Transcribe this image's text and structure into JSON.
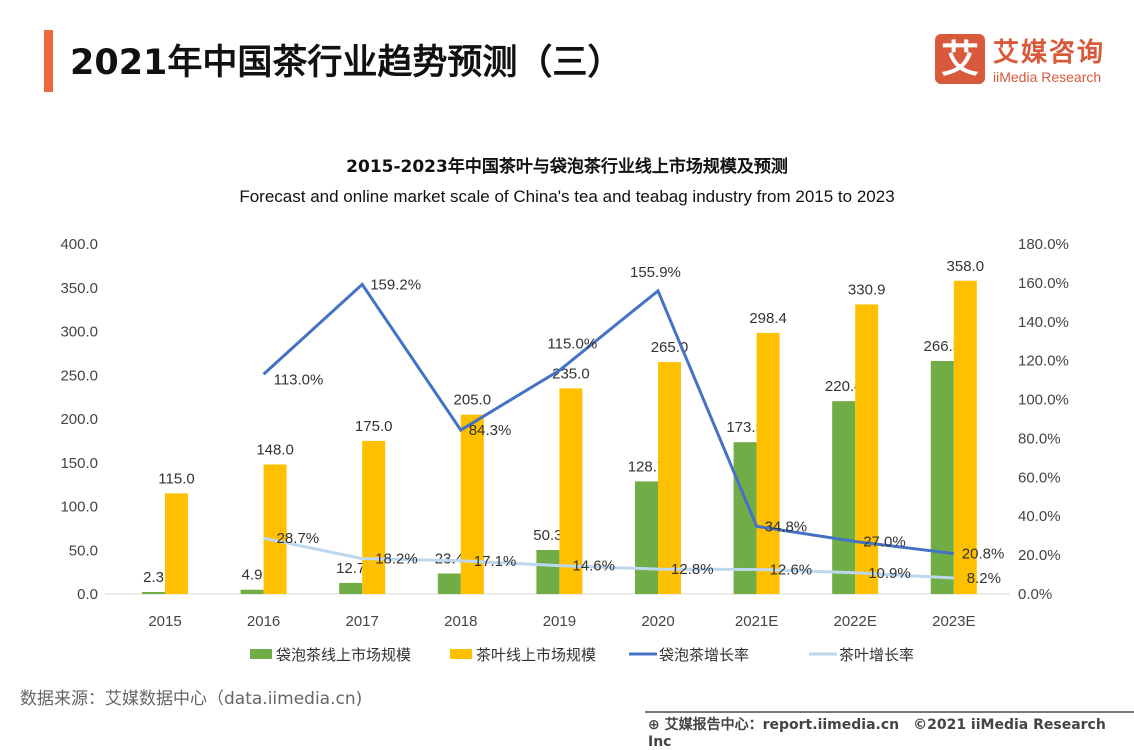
{
  "header": {
    "title": "2021年中国茶行业趋势预测（三）"
  },
  "logo": {
    "mark": "艾",
    "cn": "艾媒咨询",
    "en": "iiMedia Research"
  },
  "source": "数据来源：艾媒数据中心（data.iimedia.cn)",
  "footer": {
    "text": "艾媒报告中心：report.iimedia.cn　©2021  iiMedia Research  Inc",
    "icon": "globe-cursor-icon"
  },
  "chart_data": {
    "type": "bar+line",
    "title": "2015-2023年中国茶叶与袋泡茶行业线上市场规模及预测",
    "subtitle": "Forecast and online market scale of China's tea and teabag industry from 2015 to 2023",
    "categories": [
      "2015",
      "2016",
      "2017",
      "2018",
      "2019",
      "2020",
      "2021E",
      "2022E",
      "2023E"
    ],
    "y_left": {
      "range": [
        0,
        400
      ],
      "ticks": [
        "0.0",
        "50.0",
        "100.0",
        "150.0",
        "200.0",
        "250.0",
        "300.0",
        "350.0",
        "400.0"
      ]
    },
    "y_right": {
      "range": [
        0,
        180
      ],
      "ticks": [
        "0.0%",
        "20.0%",
        "40.0%",
        "60.0%",
        "80.0%",
        "100.0%",
        "120.0%",
        "140.0%",
        "160.0%",
        "180.0%"
      ]
    },
    "grid": false,
    "legend": "bottom",
    "series": [
      {
        "name": "袋泡茶线上市场规模",
        "type": "bar",
        "axis": "left",
        "color": "#70ad47",
        "values": [
          2.3,
          4.9,
          12.7,
          23.4,
          50.3,
          128.7,
          173.5,
          220.4,
          266.3
        ],
        "labels": [
          "2.3",
          "4.9",
          "12.7",
          "23.4",
          "50.3",
          "128.7",
          "173.5",
          "220.4",
          "266.3"
        ]
      },
      {
        "name": "茶叶线上市场规模",
        "type": "bar",
        "axis": "left",
        "color": "#ffc000",
        "values": [
          115.0,
          148.0,
          175.0,
          205.0,
          235.0,
          265.0,
          298.4,
          330.9,
          358.0
        ],
        "labels": [
          "115.0",
          "148.0",
          "175.0",
          "205.0",
          "235.0",
          "265.0",
          "298.4",
          "330.9",
          "358.0"
        ]
      },
      {
        "name": "袋泡茶增长率",
        "type": "line",
        "axis": "right",
        "color": "#4472c4",
        "values": [
          null,
          113.0,
          159.2,
          84.3,
          115.0,
          155.9,
          34.8,
          27.0,
          20.8
        ],
        "labels": [
          null,
          "113.0%",
          "159.2%",
          "84.3%",
          "115.0%",
          "155.9%",
          "34.8%",
          "27.0%",
          "20.8%"
        ]
      },
      {
        "name": "茶叶增长率",
        "type": "line",
        "axis": "right",
        "color": "#bdd7ee",
        "values": [
          null,
          28.7,
          18.2,
          17.1,
          14.6,
          12.8,
          12.6,
          10.9,
          8.2
        ],
        "labels": [
          null,
          "28.7%",
          "18.2%",
          "17.1%",
          "14.6%",
          "12.8%",
          "12.6%",
          "10.9%",
          "8.2%"
        ]
      }
    ]
  }
}
